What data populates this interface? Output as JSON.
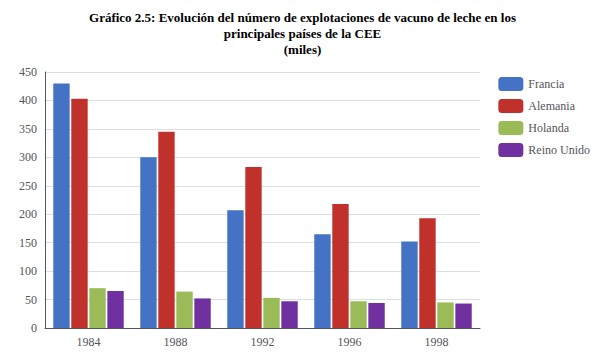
{
  "chart_data": {
    "type": "bar",
    "title": "Gráfico 2.5: Evolución del número de explotaciones de vacuno de leche en los\nprincipales países de la CEE",
    "subtitle": "(miles)",
    "categories": [
      "1984",
      "1988",
      "1992",
      "1996",
      "1998"
    ],
    "series": [
      {
        "name": "Francia",
        "color": "#4472C4",
        "values": [
          430,
          300,
          207,
          165,
          152
        ]
      },
      {
        "name": "Alemania",
        "color": "#C0312B",
        "values": [
          403,
          345,
          283,
          218,
          193
        ]
      },
      {
        "name": "Holanda",
        "color": "#9BBB59",
        "values": [
          70,
          64,
          53,
          47,
          45
        ]
      },
      {
        "name": "Reino Unido",
        "color": "#7030A0",
        "values": [
          65,
          52,
          47,
          44,
          43
        ]
      }
    ],
    "ylim": [
      0,
      450
    ],
    "yticks": [
      0,
      50,
      100,
      150,
      200,
      250,
      300,
      350,
      400,
      450
    ],
    "grid": true,
    "legend": "right"
  }
}
